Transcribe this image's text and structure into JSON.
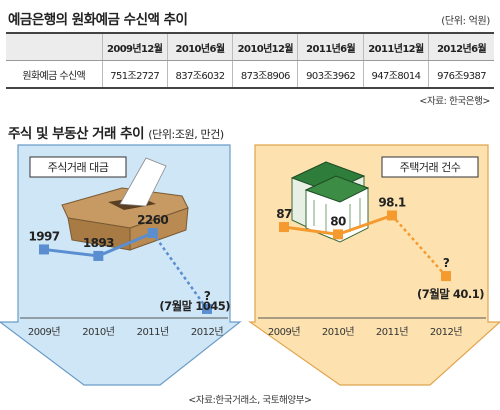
{
  "deposit": {
    "title": "예금은행의 원화예금 수신액 추이",
    "unit": "(단위: 억원)",
    "header_blank": "",
    "row_label": "원화예금 수신액",
    "columns": [
      "2009년12월",
      "2010년6월",
      "2010년12월",
      "2011년6월",
      "2011년12월",
      "2012년6월"
    ],
    "values": [
      "751조2727",
      "837조6032",
      "873조8906",
      "903조3962",
      "947조8014",
      "976조9387"
    ],
    "source": "<자료: 한국은행>"
  },
  "trend": {
    "title": "주식 및 부동산 거래 추이",
    "unit": "(단위:조원, 만건)",
    "source": "<자료:한국거래소, 국토해양부>"
  },
  "colors": {
    "stock_panel": "#cfe6f6",
    "stock_line": "#5a8ed0",
    "stock_dashed": "#5a8ed0",
    "housing_panel": "#fde2b0",
    "housing_line": "#f49a2e",
    "housing_dashed": "#f49a2e"
  },
  "chart_data": [
    {
      "type": "line",
      "title": "주식거래 대금",
      "categories": [
        "2009년",
        "2010년",
        "2011년",
        "2012년"
      ],
      "values": [
        1997,
        1893,
        2260,
        1045
      ],
      "value_labels": [
        "1997",
        "1893",
        "2260",
        "?"
      ],
      "annotation": "(7월말 1045)",
      "projected_last": true,
      "ylim": [
        900,
        2500
      ]
    },
    {
      "type": "line",
      "title": "주택거래 건수",
      "categories": [
        "2009년",
        "2010년",
        "2011년",
        "2012년"
      ],
      "values": [
        87,
        80,
        98.1,
        40.1
      ],
      "value_labels": [
        "87",
        "80",
        "98.1",
        "?"
      ],
      "annotation": "(7월말 40.1)",
      "projected_last": true,
      "ylim": [
        0,
        110
      ]
    }
  ]
}
